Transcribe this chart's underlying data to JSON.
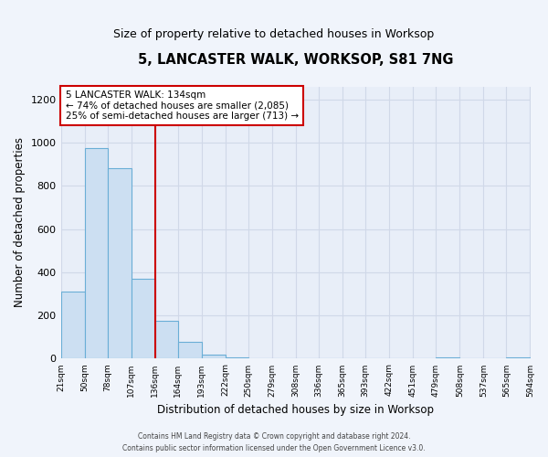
{
  "title": "5, LANCASTER WALK, WORKSOP, S81 7NG",
  "subtitle": "Size of property relative to detached houses in Worksop",
  "xlabel": "Distribution of detached houses by size in Worksop",
  "ylabel": "Number of detached properties",
  "bin_edges": [
    21,
    50,
    78,
    107,
    136,
    164,
    193,
    222,
    250,
    279,
    308,
    336,
    365,
    393,
    422,
    451,
    479,
    508,
    537,
    565,
    594
  ],
  "bar_heights": [
    310,
    975,
    880,
    370,
    175,
    80,
    20,
    5,
    0,
    0,
    0,
    0,
    0,
    0,
    0,
    0,
    5,
    0,
    0,
    5
  ],
  "bar_facecolor": "#ccdff2",
  "bar_edgecolor": "#6aaed6",
  "vline_x": 136,
  "vline_color": "#cc0000",
  "annotation_title": "5 LANCASTER WALK: 134sqm",
  "annotation_line1": "← 74% of detached houses are smaller (2,085)",
  "annotation_line2": "25% of semi-detached houses are larger (713) →",
  "annotation_box_edgecolor": "#cc0000",
  "ylim": [
    0,
    1260
  ],
  "yticks": [
    0,
    200,
    400,
    600,
    800,
    1000,
    1200
  ],
  "footer_line1": "Contains HM Land Registry data © Crown copyright and database right 2024.",
  "footer_line2": "Contains public sector information licensed under the Open Government Licence v3.0.",
  "fig_facecolor": "#f0f4fb",
  "plot_facecolor": "#e8eef8",
  "grid_color": "#d0d8e8"
}
